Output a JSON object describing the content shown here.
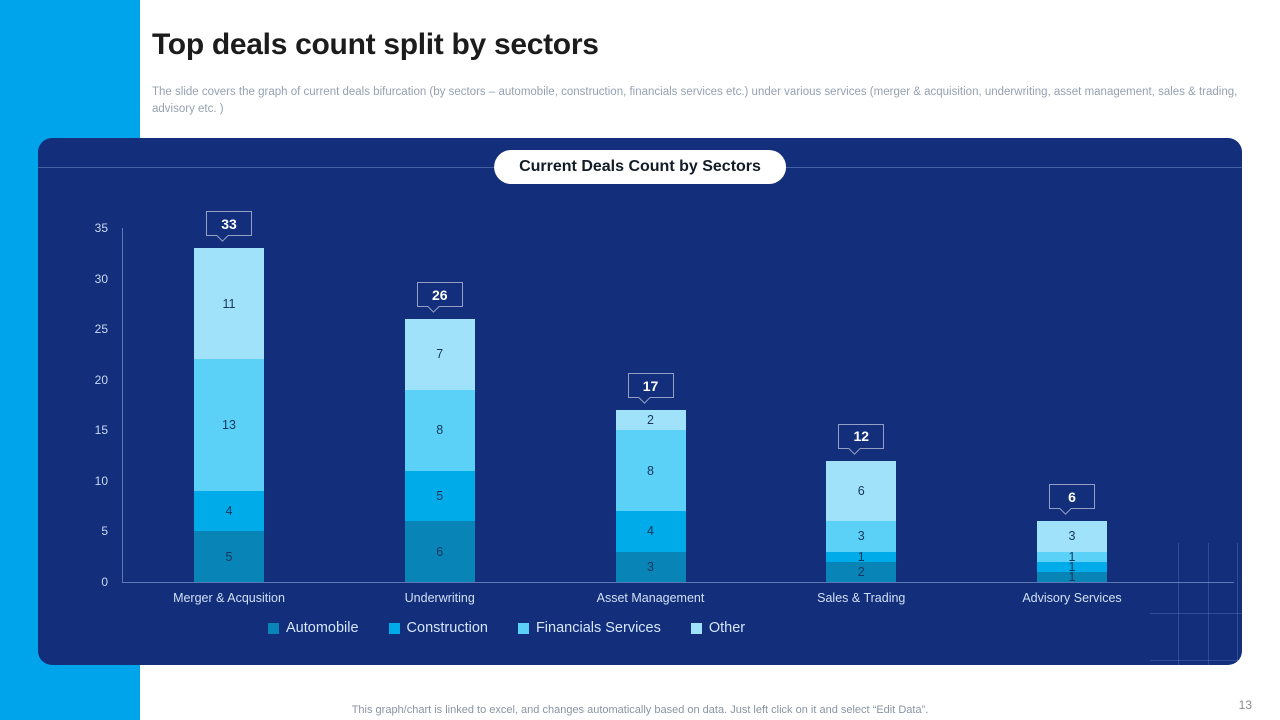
{
  "header": {
    "title": "Top deals count split by sectors",
    "subtitle": "The slide covers the graph of current deals bifurcation (by sectors – automobile, construction, financials services etc.) under various services (merger & acquisition, underwriting, asset management, sales & trading, advisory etc. )"
  },
  "footer": {
    "note": "This graph/chart is linked to excel,  and changes automatically based on data. Just left click on it and select “Edit Data”.",
    "page_number": "13"
  },
  "chart_data": {
    "type": "bar",
    "stacked": true,
    "title": "Current Deals Count by Sectors",
    "categories": [
      "Merger & Acqusition",
      "Underwriting",
      "Asset Management",
      "Sales & Trading",
      "Advisory Services"
    ],
    "series": [
      {
        "name": "Automobile",
        "color": "#0884B6",
        "values": [
          5,
          6,
          3,
          2,
          1
        ]
      },
      {
        "name": "Construction",
        "color": "#00ABE9",
        "values": [
          4,
          5,
          4,
          1,
          1
        ]
      },
      {
        "name": "Financials Services",
        "color": "#5BD1F8",
        "values": [
          13,
          8,
          8,
          3,
          1
        ]
      },
      {
        "name": "Other",
        "color": "#A0E2FA",
        "values": [
          11,
          7,
          2,
          6,
          3
        ]
      }
    ],
    "totals": [
      33,
      26,
      17,
      12,
      6
    ],
    "y_ticks": [
      0,
      5,
      10,
      15,
      20,
      25,
      30,
      35
    ],
    "ylim": [
      0,
      35
    ],
    "grid": false,
    "legend_position": "bottom"
  },
  "theme": {
    "accent_cyan": "#00A4EA",
    "panel_navy": "#132E7B",
    "axis_label_color": "#C9DAF1",
    "segment_label_color": "#17375E",
    "callout_border": "rgba(255,255,255,0.55)"
  }
}
